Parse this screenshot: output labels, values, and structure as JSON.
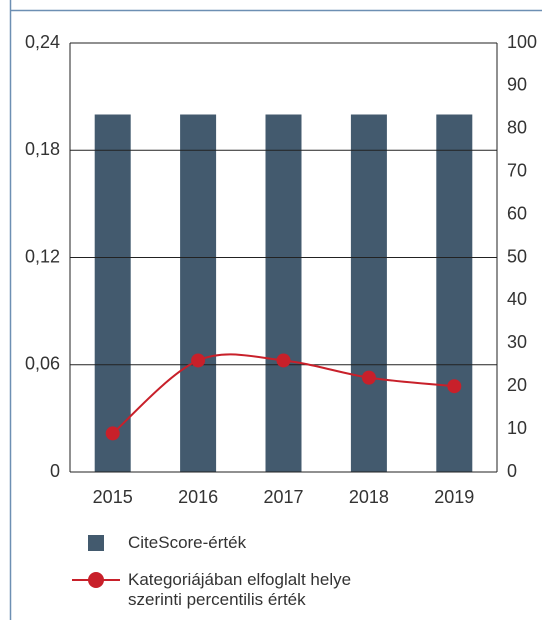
{
  "chart_data": {
    "type": "bar_line",
    "categories": [
      "2015",
      "2016",
      "2017",
      "2018",
      "2019"
    ],
    "series": [
      {
        "name": "CiteScore-érték",
        "type": "bar",
        "color": "#435a6e",
        "values": [
          0.2,
          0.2,
          0.2,
          0.2,
          0.2
        ]
      },
      {
        "name": "Kategoriájában elfoglalt helye szerinti percentilis érték",
        "type": "line",
        "axis": "y2",
        "color": "#c8202a",
        "values": [
          9,
          26,
          26,
          22,
          20
        ]
      }
    ],
    "ylim": [
      0,
      0.24
    ],
    "yticks": [
      0,
      {
        "value": 0.06,
        "label": "0,06"
      },
      {
        "value": 0.12,
        "label": "0,12"
      },
      {
        "value": 0.18,
        "label": "0,18"
      },
      {
        "value": 0.24,
        "label": "0,24"
      }
    ],
    "y2lim": [
      0,
      100
    ],
    "y2ticks": [
      0,
      10,
      20,
      30,
      40,
      50,
      60,
      70,
      80,
      90,
      100
    ],
    "grid": true
  }
}
